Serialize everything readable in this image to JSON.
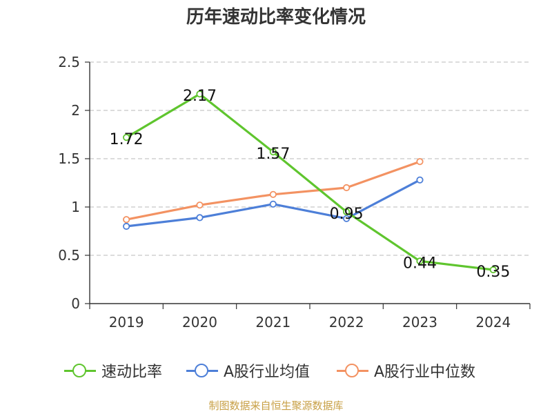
{
  "chart_data": {
    "type": "line",
    "title": "历年速动比率变化情况",
    "categories": [
      "2019",
      "2020",
      "2021",
      "2022",
      "2023",
      "2024"
    ],
    "ylim": [
      0,
      2.5
    ],
    "yticks": [
      "0",
      "0.5",
      "1",
      "1.5",
      "2",
      "2.5"
    ],
    "grid": true,
    "legend_position": "bottom",
    "series": [
      {
        "name": "速动比率",
        "color": "#5fc52e",
        "values": [
          1.72,
          2.17,
          1.57,
          0.95,
          0.44,
          0.35
        ],
        "labels": [
          "1.72",
          "2.17",
          "1.57",
          "0.95",
          "0.44",
          "0.35"
        ]
      },
      {
        "name": "A股行业均值",
        "color": "#4d7fd8",
        "values": [
          0.8,
          0.89,
          1.03,
          0.88,
          1.28,
          null
        ]
      },
      {
        "name": "A股行业中位数",
        "color": "#f39262",
        "values": [
          0.87,
          1.02,
          1.13,
          1.2,
          1.47,
          null
        ]
      }
    ]
  },
  "footer": {
    "note": "制图数据来自恒生聚源数据库"
  }
}
